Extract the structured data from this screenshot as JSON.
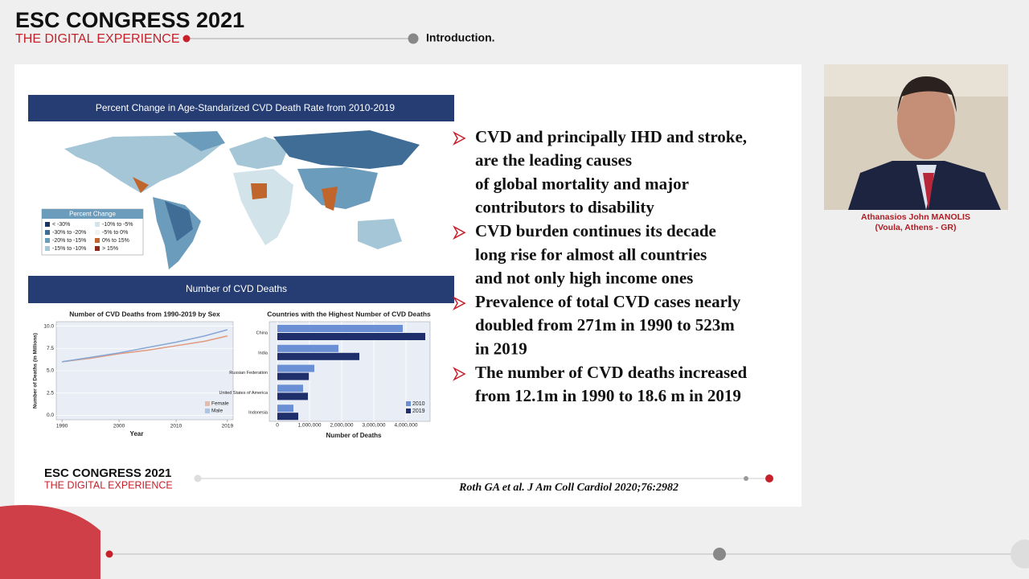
{
  "header": {
    "title": "ESC CONGRESS 2021",
    "subtitle": "THE DIGITAL EXPERIENCE",
    "section": "Introduction."
  },
  "figure": {
    "map_title": "Percent Change in Age-Standarized CVD Death Rate from 2010-2019",
    "map_legend": {
      "title": "Percent Change",
      "items": [
        {
          "label": "< -30%",
          "color": "#1d3461"
        },
        {
          "label": "-30% to -20%",
          "color": "#3f6d96"
        },
        {
          "label": "-20% to -15%",
          "color": "#6c9cbc"
        },
        {
          "label": "-15% to -10%",
          "color": "#a4c6d6"
        },
        {
          "label": "-10% to -5%",
          "color": "#d2e4ea"
        },
        {
          "label": "-5% to 0%",
          "color": "#eef4f4"
        },
        {
          "label": "0% to 15%",
          "color": "#c0652b"
        },
        {
          "label": "> 15%",
          "color": "#8a2a1a"
        }
      ]
    },
    "deaths_title": "Number of CVD Deaths"
  },
  "chart_data": [
    {
      "type": "line",
      "title": "Number of CVD Deaths from 1990-2019 by Sex",
      "x_label": "Year",
      "y_label": "Number of Deaths (in Millions)",
      "x": [
        1990,
        1995,
        2000,
        2005,
        2010,
        2015,
        2019
      ],
      "series": [
        {
          "name": "Female",
          "color": "#e29a7e",
          "values": [
            6.0,
            6.4,
            6.9,
            7.3,
            7.8,
            8.3,
            8.9
          ]
        },
        {
          "name": "Male",
          "color": "#86a8d4",
          "values": [
            6.0,
            6.5,
            7.0,
            7.6,
            8.2,
            8.9,
            9.6
          ]
        }
      ],
      "xlim": [
        1989,
        2020
      ],
      "xticks": [
        1990,
        2000,
        2010,
        2019
      ],
      "ylim": [
        -0.5,
        10.5
      ],
      "yticks": [
        {
          "value": 0,
          "label": "0.0"
        },
        {
          "value": 2.5,
          "label": "2.5"
        },
        {
          "value": 5,
          "label": "5.0"
        },
        {
          "value": 7.5,
          "label": "7.5"
        },
        {
          "value": 10,
          "label": "10.0"
        }
      ],
      "grid": true,
      "legend": "lower right"
    },
    {
      "type": "bar",
      "orientation": "horizontal",
      "title": "Countries with the Highest Number of CVD Deaths",
      "x_label": "Number of Deaths",
      "categories": [
        "China",
        "India",
        "Russian Federation",
        "United States of America",
        "Indonesia"
      ],
      "series": [
        {
          "name": "2010",
          "color": "#6b8fd4",
          "values": [
            3900000,
            1900000,
            1150000,
            800000,
            500000
          ]
        },
        {
          "name": "2019",
          "color": "#1f2f6b",
          "values": [
            4600000,
            2550000,
            980000,
            950000,
            650000
          ]
        }
      ],
      "xlim": [
        0,
        4750000
      ],
      "xticks": [
        0,
        {
          "value": 1000000,
          "label": "1,000,000"
        },
        {
          "value": 2000000,
          "label": "2,000,000"
        },
        {
          "value": 3000000,
          "label": "3,000,000"
        },
        {
          "value": 4000000,
          "label": "4,000,000"
        }
      ],
      "grid": true,
      "legend": "lower right"
    }
  ],
  "bullets": [
    [
      "CVD and principally IHD and stroke,",
      "are the leading causes",
      "of global mortality and major",
      "contributors to disability"
    ],
    [
      "CVD burden continues its decade",
      "long rise for almost all countries",
      "and not only high income ones"
    ],
    [
      "Prevalence of total CVD cases nearly",
      "doubled from 271m in 1990 to 523m",
      "in 2019"
    ],
    [
      "The number of CVD deaths increased",
      "from 12.1m in 1990 to 18.6 m in 2019"
    ]
  ],
  "footer": {
    "title": "ESC CONGRESS 2021",
    "subtitle": "THE DIGITAL EXPERIENCE",
    "citation": "Roth GA et al. J Am Coll Cardiol 2020;76:2982"
  },
  "speaker": {
    "name": "Athanasios John MANOLIS",
    "location": "(Voula, Athens - GR)"
  }
}
